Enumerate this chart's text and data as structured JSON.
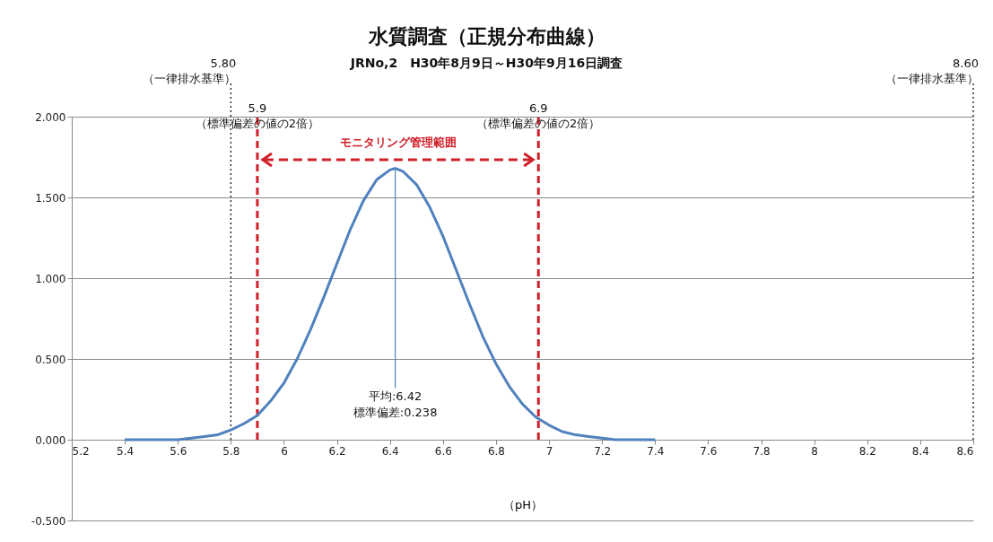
{
  "chart_data": {
    "type": "line",
    "title": "水質調査（正規分布曲線）",
    "subtitle": "JRNo,2　H30年8月9日～H30年9月16日調査",
    "xlabel": "（pH）",
    "xlim": [
      5.2,
      8.6
    ],
    "xticks": [
      5.2,
      5.4,
      5.6,
      5.8,
      6,
      6.2,
      6.4,
      6.6,
      6.8,
      7,
      7.2,
      7.4,
      7.6,
      7.8,
      8,
      8.2,
      8.4,
      8.6
    ],
    "ylim": [
      -0.5,
      2.0
    ],
    "yticks": [
      {
        "value": -0.5,
        "label": "-0.500"
      },
      {
        "value": 0,
        "label": "0.000"
      },
      {
        "value": 0.5,
        "label": "0.500"
      },
      {
        "value": 1,
        "label": "1.000"
      },
      {
        "value": 1.5,
        "label": "1.500"
      },
      {
        "value": 2,
        "label": "2.000"
      }
    ],
    "grid": "y",
    "marker": "none",
    "series": [
      {
        "color": "#4f81bd",
        "x": [
          5.4,
          5.45,
          5.5,
          5.55,
          5.6,
          5.65,
          5.7,
          5.75,
          5.8,
          5.85,
          5.9,
          5.95,
          6.0,
          6.05,
          6.1,
          6.15,
          6.2,
          6.25,
          6.3,
          6.35,
          6.4,
          6.42,
          6.45,
          6.5,
          6.55,
          6.6,
          6.65,
          6.7,
          6.75,
          6.8,
          6.85,
          6.9,
          6.95,
          7.0,
          7.05,
          7.1,
          7.15,
          7.2,
          7.25,
          7.3,
          7.35,
          7.4
        ],
        "values": [
          0.0,
          0.0,
          0.0,
          0.0,
          0.0,
          0.01,
          0.02,
          0.03,
          0.06,
          0.1,
          0.15,
          0.24,
          0.35,
          0.5,
          0.68,
          0.88,
          1.09,
          1.3,
          1.48,
          1.61,
          1.67,
          1.68,
          1.66,
          1.58,
          1.44,
          1.26,
          1.05,
          0.84,
          0.64,
          0.47,
          0.33,
          0.22,
          0.14,
          0.09,
          0.05,
          0.03,
          0.02,
          0.01,
          0.0,
          0.0,
          0.0,
          0.0
        ]
      },
      {
        "color": "#4f81bd",
        "x": [
          6.42,
          6.42
        ],
        "values": [
          0.32,
          1.68
        ]
      }
    ],
    "ref_lines": [
      {
        "axis": "x",
        "value": 5.8,
        "label": "5.80\n（一律排水基準）",
        "color": "#000000",
        "line_style": "dotted"
      },
      {
        "axis": "x",
        "value": 8.6,
        "label": "8.60\n（一律排水基準）",
        "color": "#000000",
        "line_style": "dotted"
      },
      {
        "axis": "x",
        "value": 5.9,
        "label": "5.9\n（標準偏差の値の2倍）",
        "color": "#d0202a",
        "line_style": "dashed"
      },
      {
        "axis": "x",
        "value": 6.96,
        "label": "6.9\n（標準偏差の値の2倍）",
        "color": "#d0202a",
        "line_style": "dashed"
      }
    ],
    "annotations": [
      "モニタリング管理範囲",
      {
        "text": "平均:6.42\n標準偏差:0.238",
        "x": 6.42,
        "y": 0.3
      }
    ]
  }
}
